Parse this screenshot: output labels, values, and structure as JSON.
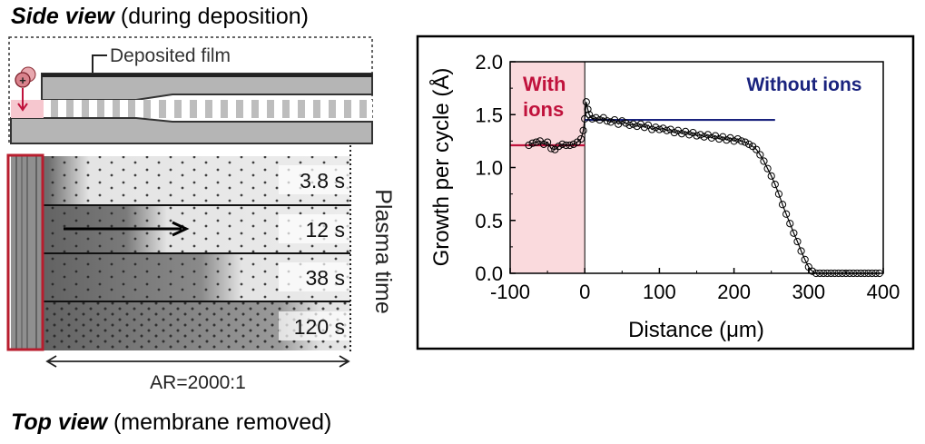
{
  "side_view": {
    "title_bold": "Side view",
    "title_rest": " (during deposition)",
    "film_label": "Deposited film"
  },
  "top_view": {
    "title_bold": "Top view",
    "title_rest": " (membrane removed)",
    "aspect_ratio_label": "AR=2000:1",
    "plasma_time_label": "Plasma time",
    "rows": [
      {
        "time": "3.8 s",
        "fade_fraction": 0.17
      },
      {
        "time": "12 s",
        "fade_fraction": 0.4
      },
      {
        "time": "38 s",
        "fade_fraction": 0.62
      },
      {
        "time": "120 s",
        "fade_fraction": 0.85
      }
    ]
  },
  "colors": {
    "ion_region": "#fadadd",
    "with_ions": "#c0123c",
    "without_ions": "#1a237e",
    "ion_box": "#b81d2e",
    "panel_gray": "#bdbdbd"
  },
  "chart_data": {
    "type": "scatter",
    "xlabel": "Distance (μm)",
    "ylabel": "Growth per cycle (Å)",
    "xlim": [
      -100,
      400
    ],
    "ylim": [
      0,
      2.0
    ],
    "xticks": [
      -100,
      0,
      100,
      200,
      300,
      400
    ],
    "xtick_labels": [
      "-100",
      "0",
      "100",
      "200",
      "300",
      "400"
    ],
    "yticks": [
      0,
      0.5,
      1.0,
      1.5,
      2.0
    ],
    "ytick_labels": [
      "0.0",
      "0.5",
      "1.0",
      "1.5",
      "2.0"
    ],
    "grid": false,
    "shaded_region": {
      "x": [
        -100,
        0
      ],
      "label_lines": [
        "With",
        "ions"
      ]
    },
    "reference_lines": [
      {
        "name": "With ions",
        "x": [
          -100,
          0
        ],
        "y": 1.21
      },
      {
        "name": "Without ions",
        "x": [
          0,
          255
        ],
        "y": 1.45
      }
    ],
    "series": [
      {
        "name": "",
        "x": [
          -75,
          -70,
          -65,
          -60,
          -55,
          -50,
          -45,
          -40,
          -35,
          -30,
          -25,
          -20,
          -15,
          -10,
          -5,
          -2,
          0,
          2,
          4,
          6,
          10,
          15,
          20,
          25,
          30,
          35,
          40,
          45,
          50,
          55,
          60,
          65,
          70,
          75,
          80,
          85,
          90,
          95,
          100,
          105,
          110,
          115,
          120,
          125,
          130,
          135,
          140,
          145,
          150,
          155,
          160,
          165,
          170,
          175,
          180,
          185,
          190,
          195,
          200,
          205,
          210,
          215,
          220,
          225,
          230,
          235,
          240,
          245,
          250,
          255,
          260,
          265,
          270,
          275,
          280,
          285,
          290,
          295,
          300,
          305,
          310,
          315,
          320,
          325,
          330,
          335,
          340,
          345,
          350,
          355,
          360,
          365,
          370,
          375,
          380,
          385,
          390,
          395
        ],
        "y": [
          1.21,
          1.23,
          1.24,
          1.25,
          1.22,
          1.24,
          1.18,
          1.17,
          1.2,
          1.22,
          1.21,
          1.21,
          1.22,
          1.24,
          1.27,
          1.35,
          1.46,
          1.62,
          1.55,
          1.5,
          1.46,
          1.47,
          1.45,
          1.47,
          1.44,
          1.43,
          1.45,
          1.41,
          1.44,
          1.42,
          1.4,
          1.41,
          1.39,
          1.41,
          1.38,
          1.4,
          1.36,
          1.38,
          1.36,
          1.37,
          1.35,
          1.36,
          1.33,
          1.35,
          1.32,
          1.34,
          1.31,
          1.33,
          1.3,
          1.31,
          1.29,
          1.31,
          1.28,
          1.3,
          1.27,
          1.29,
          1.26,
          1.28,
          1.25,
          1.27,
          1.25,
          1.24,
          1.22,
          1.2,
          1.17,
          1.12,
          1.06,
          0.99,
          0.92,
          0.84,
          0.75,
          0.65,
          0.56,
          0.47,
          0.38,
          0.3,
          0.21,
          0.13,
          0.06,
          0.02,
          0.0,
          0.0,
          0.0,
          0.0,
          0.0,
          0.0,
          0.0,
          0.0,
          0.0,
          0.0,
          0.0,
          0.0,
          0.0,
          0.0,
          0.0,
          0.0,
          0.0,
          0.0
        ]
      }
    ]
  }
}
